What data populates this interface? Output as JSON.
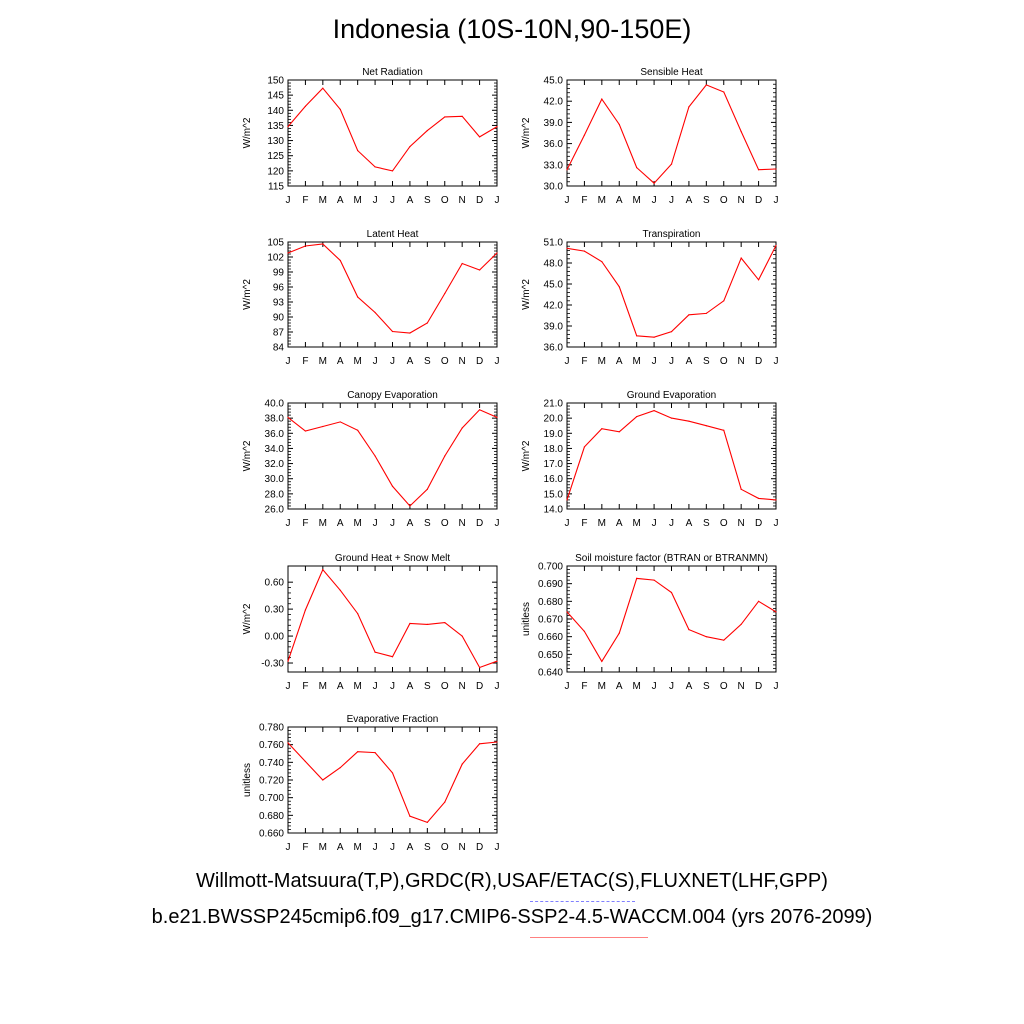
{
  "title": "Indonesia (10S-10N,90-150E)",
  "footer": {
    "obs_line": "Willmott-Matsuura(T,P),GRDC(R),USAF/ETAC(S),FLUXNET(LHF,GPP)",
    "case_line": "b.e21.BWSSP245cmip6.f09_g17.CMIP6-SSP2-4.5-WACCM.004 (yrs 2076-2099)"
  },
  "colors": {
    "series": "#ff0000",
    "obs_dash": "#8080ff",
    "case_line": "#ff8080"
  },
  "chart_data": [
    {
      "type": "line",
      "title": "Net Radiation",
      "ylabel": "W/m^2",
      "categories": [
        "J",
        "F",
        "M",
        "A",
        "M",
        "J",
        "J",
        "A",
        "S",
        "O",
        "N",
        "D",
        "J"
      ],
      "ylim": [
        115,
        150
      ],
      "yticks": [
        "115",
        "120",
        "125",
        "130",
        "135",
        "140",
        "145",
        "150"
      ],
      "values": [
        134.6,
        141.3,
        147.3,
        140.3,
        126.7,
        121.3,
        120.0,
        128.0,
        133.3,
        137.8,
        138.0,
        131.2,
        134.6
      ]
    },
    {
      "type": "line",
      "title": "Sensible Heat",
      "ylabel": "W/m^2",
      "categories": [
        "J",
        "F",
        "M",
        "A",
        "M",
        "J",
        "J",
        "A",
        "S",
        "O",
        "N",
        "D",
        "J"
      ],
      "ylim": [
        30,
        45
      ],
      "yticks": [
        "30.0",
        "33.0",
        "36.0",
        "39.0",
        "42.0",
        "45.0"
      ],
      "values": [
        32.3,
        37.2,
        42.3,
        38.7,
        32.6,
        30.4,
        33.1,
        41.2,
        44.3,
        43.3,
        37.7,
        32.3,
        32.4
      ]
    },
    {
      "type": "line",
      "title": "Latent Heat",
      "ylabel": "W/m^2",
      "categories": [
        "J",
        "F",
        "M",
        "A",
        "M",
        "J",
        "J",
        "A",
        "S",
        "O",
        "N",
        "D",
        "J"
      ],
      "ylim": [
        84,
        105
      ],
      "yticks": [
        "84",
        "87",
        "90",
        "93",
        "96",
        "99",
        "102",
        "105"
      ],
      "values": [
        102.8,
        104.2,
        104.6,
        101.3,
        94.0,
        90.9,
        87.1,
        86.8,
        88.8,
        94.7,
        100.7,
        99.4,
        102.8
      ]
    },
    {
      "type": "line",
      "title": "Transpiration",
      "ylabel": "W/m^2",
      "categories": [
        "J",
        "F",
        "M",
        "A",
        "M",
        "J",
        "J",
        "A",
        "S",
        "O",
        "N",
        "D",
        "J"
      ],
      "ylim": [
        36,
        51
      ],
      "yticks": [
        "36.0",
        "39.0",
        "42.0",
        "45.0",
        "48.0",
        "51.0"
      ],
      "values": [
        50.1,
        49.7,
        48.2,
        44.6,
        37.6,
        37.4,
        38.2,
        40.6,
        40.8,
        42.6,
        48.7,
        45.6,
        50.5
      ]
    },
    {
      "type": "line",
      "title": "Canopy Evaporation",
      "ylabel": "W/m^2",
      "categories": [
        "J",
        "F",
        "M",
        "A",
        "M",
        "J",
        "J",
        "A",
        "S",
        "O",
        "N",
        "D",
        "J"
      ],
      "ylim": [
        26,
        40
      ],
      "yticks": [
        "26.0",
        "28.0",
        "30.0",
        "32.0",
        "34.0",
        "36.0",
        "38.0",
        "40.0"
      ],
      "values": [
        38.1,
        36.3,
        36.9,
        37.5,
        36.4,
        33.0,
        29.0,
        26.4,
        28.6,
        33.0,
        36.7,
        39.1,
        38.1
      ]
    },
    {
      "type": "line",
      "title": "Ground Evaporation",
      "ylabel": "W/m^2",
      "categories": [
        "J",
        "F",
        "M",
        "A",
        "M",
        "J",
        "J",
        "A",
        "S",
        "O",
        "N",
        "D",
        "J"
      ],
      "ylim": [
        14,
        21
      ],
      "yticks": [
        "14.0",
        "15.0",
        "16.0",
        "17.0",
        "18.0",
        "19.0",
        "20.0",
        "21.0"
      ],
      "values": [
        14.6,
        18.1,
        19.3,
        19.1,
        20.1,
        20.5,
        20.0,
        19.8,
        19.5,
        19.2,
        15.3,
        14.7,
        14.6
      ]
    },
    {
      "type": "line",
      "title": "Ground Heat + Snow Melt",
      "ylabel": "W/m^2",
      "categories": [
        "J",
        "F",
        "M",
        "A",
        "M",
        "J",
        "J",
        "A",
        "S",
        "O",
        "N",
        "D",
        "J"
      ],
      "ylim": [
        -0.4,
        0.78
      ],
      "yticks": [
        "-0.30",
        "0.00",
        "0.30",
        "0.60"
      ],
      "ytick_values": [
        -0.3,
        0.0,
        0.3,
        0.6
      ],
      "values": [
        -0.28,
        0.29,
        0.74,
        0.51,
        0.25,
        -0.18,
        -0.23,
        0.14,
        0.13,
        0.15,
        0.0,
        -0.35,
        -0.28
      ]
    },
    {
      "type": "line",
      "title": "Soil moisture factor (BTRAN or BTRANMN)",
      "ylabel": "unitless",
      "categories": [
        "J",
        "F",
        "M",
        "A",
        "M",
        "J",
        "J",
        "A",
        "S",
        "O",
        "N",
        "D",
        "J"
      ],
      "ylim": [
        0.64,
        0.7
      ],
      "yticks": [
        "0.640",
        "0.650",
        "0.660",
        "0.670",
        "0.680",
        "0.690",
        "0.700"
      ],
      "values": [
        0.674,
        0.663,
        0.646,
        0.662,
        0.693,
        0.692,
        0.685,
        0.664,
        0.66,
        0.658,
        0.667,
        0.68,
        0.674
      ]
    },
    {
      "type": "line",
      "title": "Evaporative Fraction",
      "ylabel": "unitless",
      "categories": [
        "J",
        "F",
        "M",
        "A",
        "M",
        "J",
        "J",
        "A",
        "S",
        "O",
        "N",
        "D",
        "J"
      ],
      "ylim": [
        0.66,
        0.78
      ],
      "yticks": [
        "0.660",
        "0.680",
        "0.700",
        "0.720",
        "0.740",
        "0.760",
        "0.780"
      ],
      "values": [
        0.762,
        0.741,
        0.72,
        0.734,
        0.752,
        0.751,
        0.728,
        0.679,
        0.672,
        0.695,
        0.738,
        0.761,
        0.763
      ]
    }
  ]
}
